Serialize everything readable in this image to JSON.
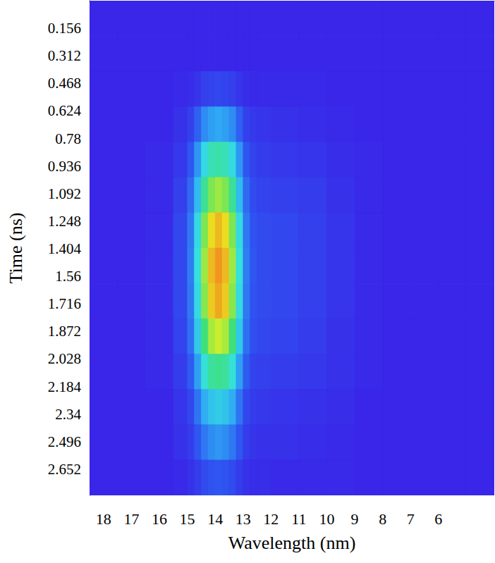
{
  "chart_data": {
    "type": "heatmap",
    "x_label": "Wavelength (nm)",
    "y_label": "Time (ns)",
    "xlim": [
      18.5,
      4
    ],
    "ylim": [
      0,
      2.8
    ],
    "xticks": [
      18,
      17,
      16,
      15,
      14,
      13,
      12,
      11,
      10,
      9,
      8,
      7,
      6
    ],
    "yticks": [
      0.156,
      0.312,
      0.468,
      0.624,
      0.78,
      0.936,
      1.092,
      1.248,
      1.404,
      1.56,
      1.716,
      1.872,
      2.028,
      2.184,
      2.34,
      2.496,
      2.652
    ],
    "grid": false,
    "cell_x": [
      18.5,
      17.5,
      16.5,
      15.5,
      15,
      14.75,
      14.5,
      14.25,
      14,
      13.75,
      13.5,
      13.25,
      13,
      12.75,
      12.5,
      12,
      11,
      10,
      9,
      8,
      7,
      6,
      5,
      4
    ],
    "cell_y": [
      0,
      0.2,
      0.4,
      0.6,
      0.8,
      1.0,
      1.2,
      1.4,
      1.6,
      1.8,
      2.0,
      2.2,
      2.4,
      2.6,
      2.8
    ],
    "cells": [
      [
        5,
        5,
        5,
        5,
        5,
        5,
        5,
        5,
        5,
        5,
        5,
        5,
        5,
        5,
        5,
        5,
        5,
        5,
        5,
        5,
        5,
        5,
        5
      ],
      [
        5,
        5,
        5,
        5,
        5,
        5,
        5,
        5,
        5,
        5,
        5,
        5,
        5,
        5,
        5,
        5,
        5,
        5,
        5,
        5,
        5,
        5,
        5
      ],
      [
        5,
        5,
        5,
        6,
        7,
        9,
        12,
        13,
        14,
        13,
        12,
        9,
        7,
        6,
        6,
        6,
        6,
        5,
        5,
        5,
        5,
        5,
        5
      ],
      [
        5,
        5,
        5,
        8,
        12,
        20,
        29,
        33,
        35,
        33,
        29,
        20,
        12,
        10,
        9,
        8,
        7,
        6,
        5,
        5,
        5,
        5,
        5
      ],
      [
        5,
        5,
        6,
        10,
        18,
        31,
        46,
        54,
        56,
        54,
        46,
        31,
        18,
        13,
        11,
        10,
        9,
        7,
        6,
        5,
        5,
        5,
        5
      ],
      [
        5,
        5,
        6,
        12,
        22,
        39,
        59,
        70,
        73,
        70,
        59,
        39,
        22,
        15,
        13,
        12,
        11,
        8,
        6,
        5,
        5,
        5,
        5
      ],
      [
        5,
        5,
        6,
        14,
        25,
        46,
        70,
        82,
        86,
        82,
        70,
        46,
        25,
        17,
        15,
        14,
        12,
        9,
        6,
        5,
        5,
        5,
        5
      ],
      [
        5,
        5,
        6,
        14,
        26,
        48,
        73,
        86,
        90,
        86,
        73,
        48,
        26,
        18,
        15,
        14,
        12,
        9,
        6,
        5,
        5,
        5,
        5
      ],
      [
        5,
        5,
        6,
        14,
        25,
        46,
        71,
        84,
        88,
        84,
        71,
        46,
        25,
        17,
        15,
        14,
        12,
        9,
        6,
        5,
        5,
        5,
        5
      ],
      [
        5,
        5,
        6,
        13,
        23,
        42,
        63,
        74,
        77,
        74,
        63,
        42,
        23,
        16,
        14,
        13,
        11,
        8,
        6,
        5,
        5,
        5,
        5
      ],
      [
        5,
        5,
        6,
        11,
        19,
        33,
        49,
        58,
        60,
        58,
        49,
        33,
        19,
        13,
        12,
        11,
        10,
        8,
        6,
        5,
        5,
        5,
        5
      ],
      [
        5,
        5,
        5,
        9,
        14,
        24,
        36,
        41,
        43,
        41,
        36,
        24,
        14,
        11,
        10,
        9,
        8,
        7,
        5,
        5,
        5,
        5,
        5
      ],
      [
        5,
        5,
        5,
        8,
        11,
        18,
        25,
        29,
        31,
        29,
        25,
        18,
        11,
        9,
        8,
        8,
        7,
        6,
        5,
        5,
        5,
        5,
        5
      ],
      [
        5,
        5,
        5,
        6,
        8,
        11,
        15,
        17,
        18,
        17,
        15,
        11,
        8,
        7,
        7,
        6,
        6,
        6,
        5,
        5,
        5,
        5,
        5
      ]
    ]
  }
}
